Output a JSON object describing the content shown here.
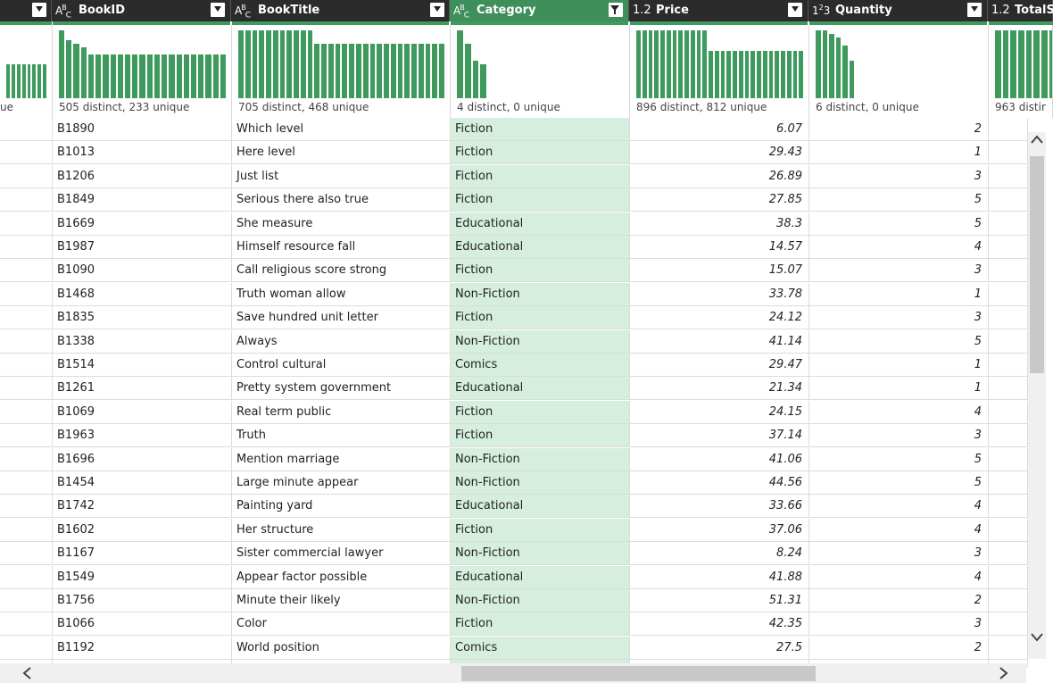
{
  "columns": [
    {
      "key": "prev",
      "title": "",
      "type_icon": "",
      "stat": "ue"
    },
    {
      "key": "bookid",
      "title": "BookID",
      "type_icon": "ABC",
      "stat": "505 distinct, 233 unique"
    },
    {
      "key": "booktitle",
      "title": "BookTitle",
      "type_icon": "ABC",
      "stat": "705 distinct, 468 unique"
    },
    {
      "key": "category",
      "title": "Category",
      "type_icon": "ABC",
      "stat": "4 distinct, 0 unique"
    },
    {
      "key": "price",
      "title": "Price",
      "type_icon": "1.2",
      "stat": "896 distinct, 812 unique"
    },
    {
      "key": "quantity",
      "title": "Quantity",
      "type_icon": "123",
      "stat": "6 distinct, 0 unique"
    },
    {
      "key": "total",
      "title": "TotalS",
      "type_icon": "1.2",
      "stat": "963 distir"
    }
  ],
  "distributions": {
    "prev": [
      0.5,
      0.5,
      0.5,
      0.5,
      0.5,
      0.5,
      0.5,
      0.5
    ],
    "bookid": [
      1.0,
      0.85,
      0.8,
      0.75,
      0.65,
      0.65,
      0.65,
      0.65,
      0.65,
      0.65,
      0.65,
      0.65,
      0.65,
      0.65,
      0.65,
      0.65,
      0.65,
      0.65,
      0.65,
      0.65,
      0.65,
      0.65,
      0.65
    ],
    "booktitle": [
      1.0,
      1.0,
      1.0,
      1.0,
      1.0,
      1.0,
      1.0,
      1.0,
      1.0,
      1.0,
      1.0,
      0.8,
      0.8,
      0.8,
      0.8,
      0.8,
      0.8,
      0.8,
      0.8,
      0.8,
      0.8,
      0.8,
      0.8,
      0.8,
      0.8,
      0.8,
      0.8,
      0.8,
      0.8,
      0.8
    ],
    "category": [
      1.0,
      0.8,
      0.55,
      0.5
    ],
    "price": [
      1.0,
      1.0,
      1.0,
      1.0,
      1.0,
      1.0,
      1.0,
      1.0,
      1.0,
      1.0,
      1.0,
      1.0,
      0.7,
      0.7,
      0.7,
      0.7,
      0.7,
      0.7,
      0.7,
      0.7,
      0.7,
      0.7,
      0.7,
      0.7,
      0.7,
      0.7,
      0.7,
      0.7
    ],
    "quantity": [
      1.0,
      1.0,
      0.95,
      0.9,
      0.78,
      0.55
    ],
    "total": [
      1.0,
      1.0,
      1.0,
      1.0,
      1.0,
      1.0,
      1.0,
      1.0,
      1.0
    ]
  },
  "rows": [
    {
      "bookid": "B1890",
      "booktitle": "Which level",
      "category": "Fiction",
      "price": "6.07",
      "quantity": "2"
    },
    {
      "bookid": "B1013",
      "booktitle": "Here level",
      "category": "Fiction",
      "price": "29.43",
      "quantity": "1"
    },
    {
      "bookid": "B1206",
      "booktitle": "Just list",
      "category": "Fiction",
      "price": "26.89",
      "quantity": "3"
    },
    {
      "bookid": "B1849",
      "booktitle": "Serious there also true",
      "category": "Fiction",
      "price": "27.85",
      "quantity": "5"
    },
    {
      "bookid": "B1669",
      "booktitle": "She measure",
      "category": "Educational",
      "price": "38.3",
      "quantity": "5"
    },
    {
      "bookid": "B1987",
      "booktitle": "Himself resource fall",
      "category": "Educational",
      "price": "14.57",
      "quantity": "4"
    },
    {
      "bookid": "B1090",
      "booktitle": "Call religious score strong",
      "category": "Fiction",
      "price": "15.07",
      "quantity": "3"
    },
    {
      "bookid": "B1468",
      "booktitle": "Truth woman allow",
      "category": "Non-Fiction",
      "price": "33.78",
      "quantity": "1"
    },
    {
      "bookid": "B1835",
      "booktitle": "Save hundred unit letter",
      "category": "Fiction",
      "price": "24.12",
      "quantity": "3"
    },
    {
      "bookid": "B1338",
      "booktitle": "Always",
      "category": "Non-Fiction",
      "price": "41.14",
      "quantity": "5"
    },
    {
      "bookid": "B1514",
      "booktitle": "Control cultural",
      "category": "Comics",
      "price": "29.47",
      "quantity": "1"
    },
    {
      "bookid": "B1261",
      "booktitle": "Pretty system government",
      "category": "Educational",
      "price": "21.34",
      "quantity": "1"
    },
    {
      "bookid": "B1069",
      "booktitle": "Real term public",
      "category": "Fiction",
      "price": "24.15",
      "quantity": "4"
    },
    {
      "bookid": "B1963",
      "booktitle": "Truth",
      "category": "Fiction",
      "price": "37.14",
      "quantity": "3"
    },
    {
      "bookid": "B1696",
      "booktitle": "Mention marriage",
      "category": "Non-Fiction",
      "price": "41.06",
      "quantity": "5"
    },
    {
      "bookid": "B1454",
      "booktitle": "Large minute appear",
      "category": "Non-Fiction",
      "price": "44.56",
      "quantity": "5"
    },
    {
      "bookid": "B1742",
      "booktitle": "Painting yard",
      "category": "Educational",
      "price": "33.66",
      "quantity": "4"
    },
    {
      "bookid": "B1602",
      "booktitle": "Her structure",
      "category": "Fiction",
      "price": "37.06",
      "quantity": "4"
    },
    {
      "bookid": "B1167",
      "booktitle": "Sister commercial lawyer",
      "category": "Non-Fiction",
      "price": "8.24",
      "quantity": "3"
    },
    {
      "bookid": "B1549",
      "booktitle": "Appear factor possible",
      "category": "Educational",
      "price": "41.88",
      "quantity": "4"
    },
    {
      "bookid": "B1756",
      "booktitle": "Minute their likely",
      "category": "Non-Fiction",
      "price": "51.31",
      "quantity": "2"
    },
    {
      "bookid": "B1066",
      "booktitle": "Color",
      "category": "Fiction",
      "price": "42.35",
      "quantity": "3"
    },
    {
      "bookid": "B1192",
      "booktitle": "World position",
      "category": "Comics",
      "price": "27.5",
      "quantity": "2"
    }
  ],
  "filtered_column": "category",
  "colors": {
    "accent": "#3f9a5e",
    "header_bg": "#2b2b2b",
    "selected_col": "#d5eedd"
  }
}
